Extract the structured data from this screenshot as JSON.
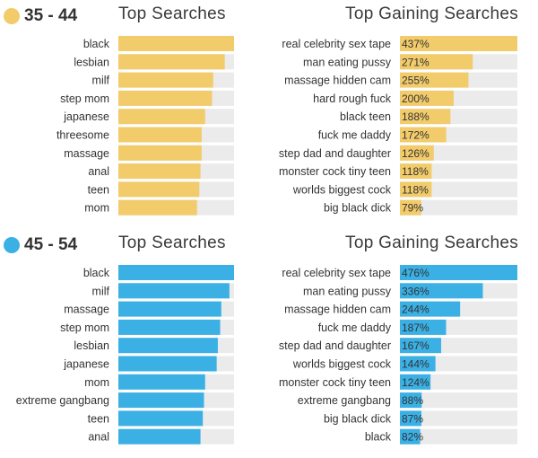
{
  "chart_data": [
    {
      "type": "bar",
      "group_label": "35 - 44",
      "title": "Top Searches",
      "categories": [
        "black",
        "lesbian",
        "milf",
        "step mom",
        "japanese",
        "threesome",
        "massage",
        "anal",
        "teen",
        "mom"
      ],
      "values": [
        100,
        92,
        82,
        81,
        75,
        72,
        72,
        71,
        70,
        68
      ],
      "xlim": [
        0,
        100
      ],
      "color": "#f2cb6b",
      "track_color": "#ebebeb"
    },
    {
      "type": "bar",
      "group_label": "35 - 44",
      "title": "Top Gaining Searches",
      "categories": [
        "real celebrity sex tape",
        "man eating pussy",
        "massage hidden cam",
        "hard rough fuck",
        "black teen",
        "fuck me daddy",
        "step dad and daughter",
        "monster cock tiny teen",
        "worlds biggest cock",
        "big black dick"
      ],
      "values": [
        437,
        271,
        255,
        200,
        188,
        172,
        126,
        118,
        118,
        79
      ],
      "value_labels": [
        "437%",
        "271%",
        "255%",
        "200%",
        "188%",
        "172%",
        "126%",
        "118%",
        "118%",
        "79%"
      ],
      "xlim": [
        0,
        437
      ],
      "color": "#f2cb6b",
      "track_color": "#ebebeb"
    },
    {
      "type": "bar",
      "group_label": "45 - 54",
      "title": "Top Searches",
      "categories": [
        "black",
        "milf",
        "massage",
        "step mom",
        "lesbian",
        "japanese",
        "mom",
        "extreme gangbang",
        "teen",
        "anal"
      ],
      "values": [
        100,
        96,
        89,
        88,
        86,
        85,
        75,
        74,
        73,
        71
      ],
      "xlim": [
        0,
        100
      ],
      "color": "#3ab0e5",
      "track_color": "#ebebeb"
    },
    {
      "type": "bar",
      "group_label": "45 - 54",
      "title": "Top Gaining Searches",
      "categories": [
        "real celebrity sex tape",
        "man eating pussy",
        "massage hidden cam",
        "fuck me daddy",
        "step dad and daughter",
        "worlds biggest cock",
        "monster cock tiny teen",
        "extreme gangbang",
        "big black dick",
        "black"
      ],
      "values": [
        476,
        336,
        244,
        187,
        167,
        144,
        124,
        88,
        87,
        82
      ],
      "value_labels": [
        "476%",
        "336%",
        "244%",
        "187%",
        "167%",
        "144%",
        "124%",
        "88%",
        "87%",
        "82%"
      ],
      "xlim": [
        0,
        476
      ],
      "color": "#3ab0e5",
      "track_color": "#ebebeb"
    }
  ],
  "panels": [
    {
      "age_label": "35 - 44",
      "left_title": "Top Searches",
      "right_title": "Top Gaining Searches",
      "dot_color": "#f2cb6b"
    },
    {
      "age_label": "45 - 54",
      "left_title": "Top Searches",
      "right_title": "Top Gaining Searches",
      "dot_color": "#3ab0e5"
    }
  ]
}
